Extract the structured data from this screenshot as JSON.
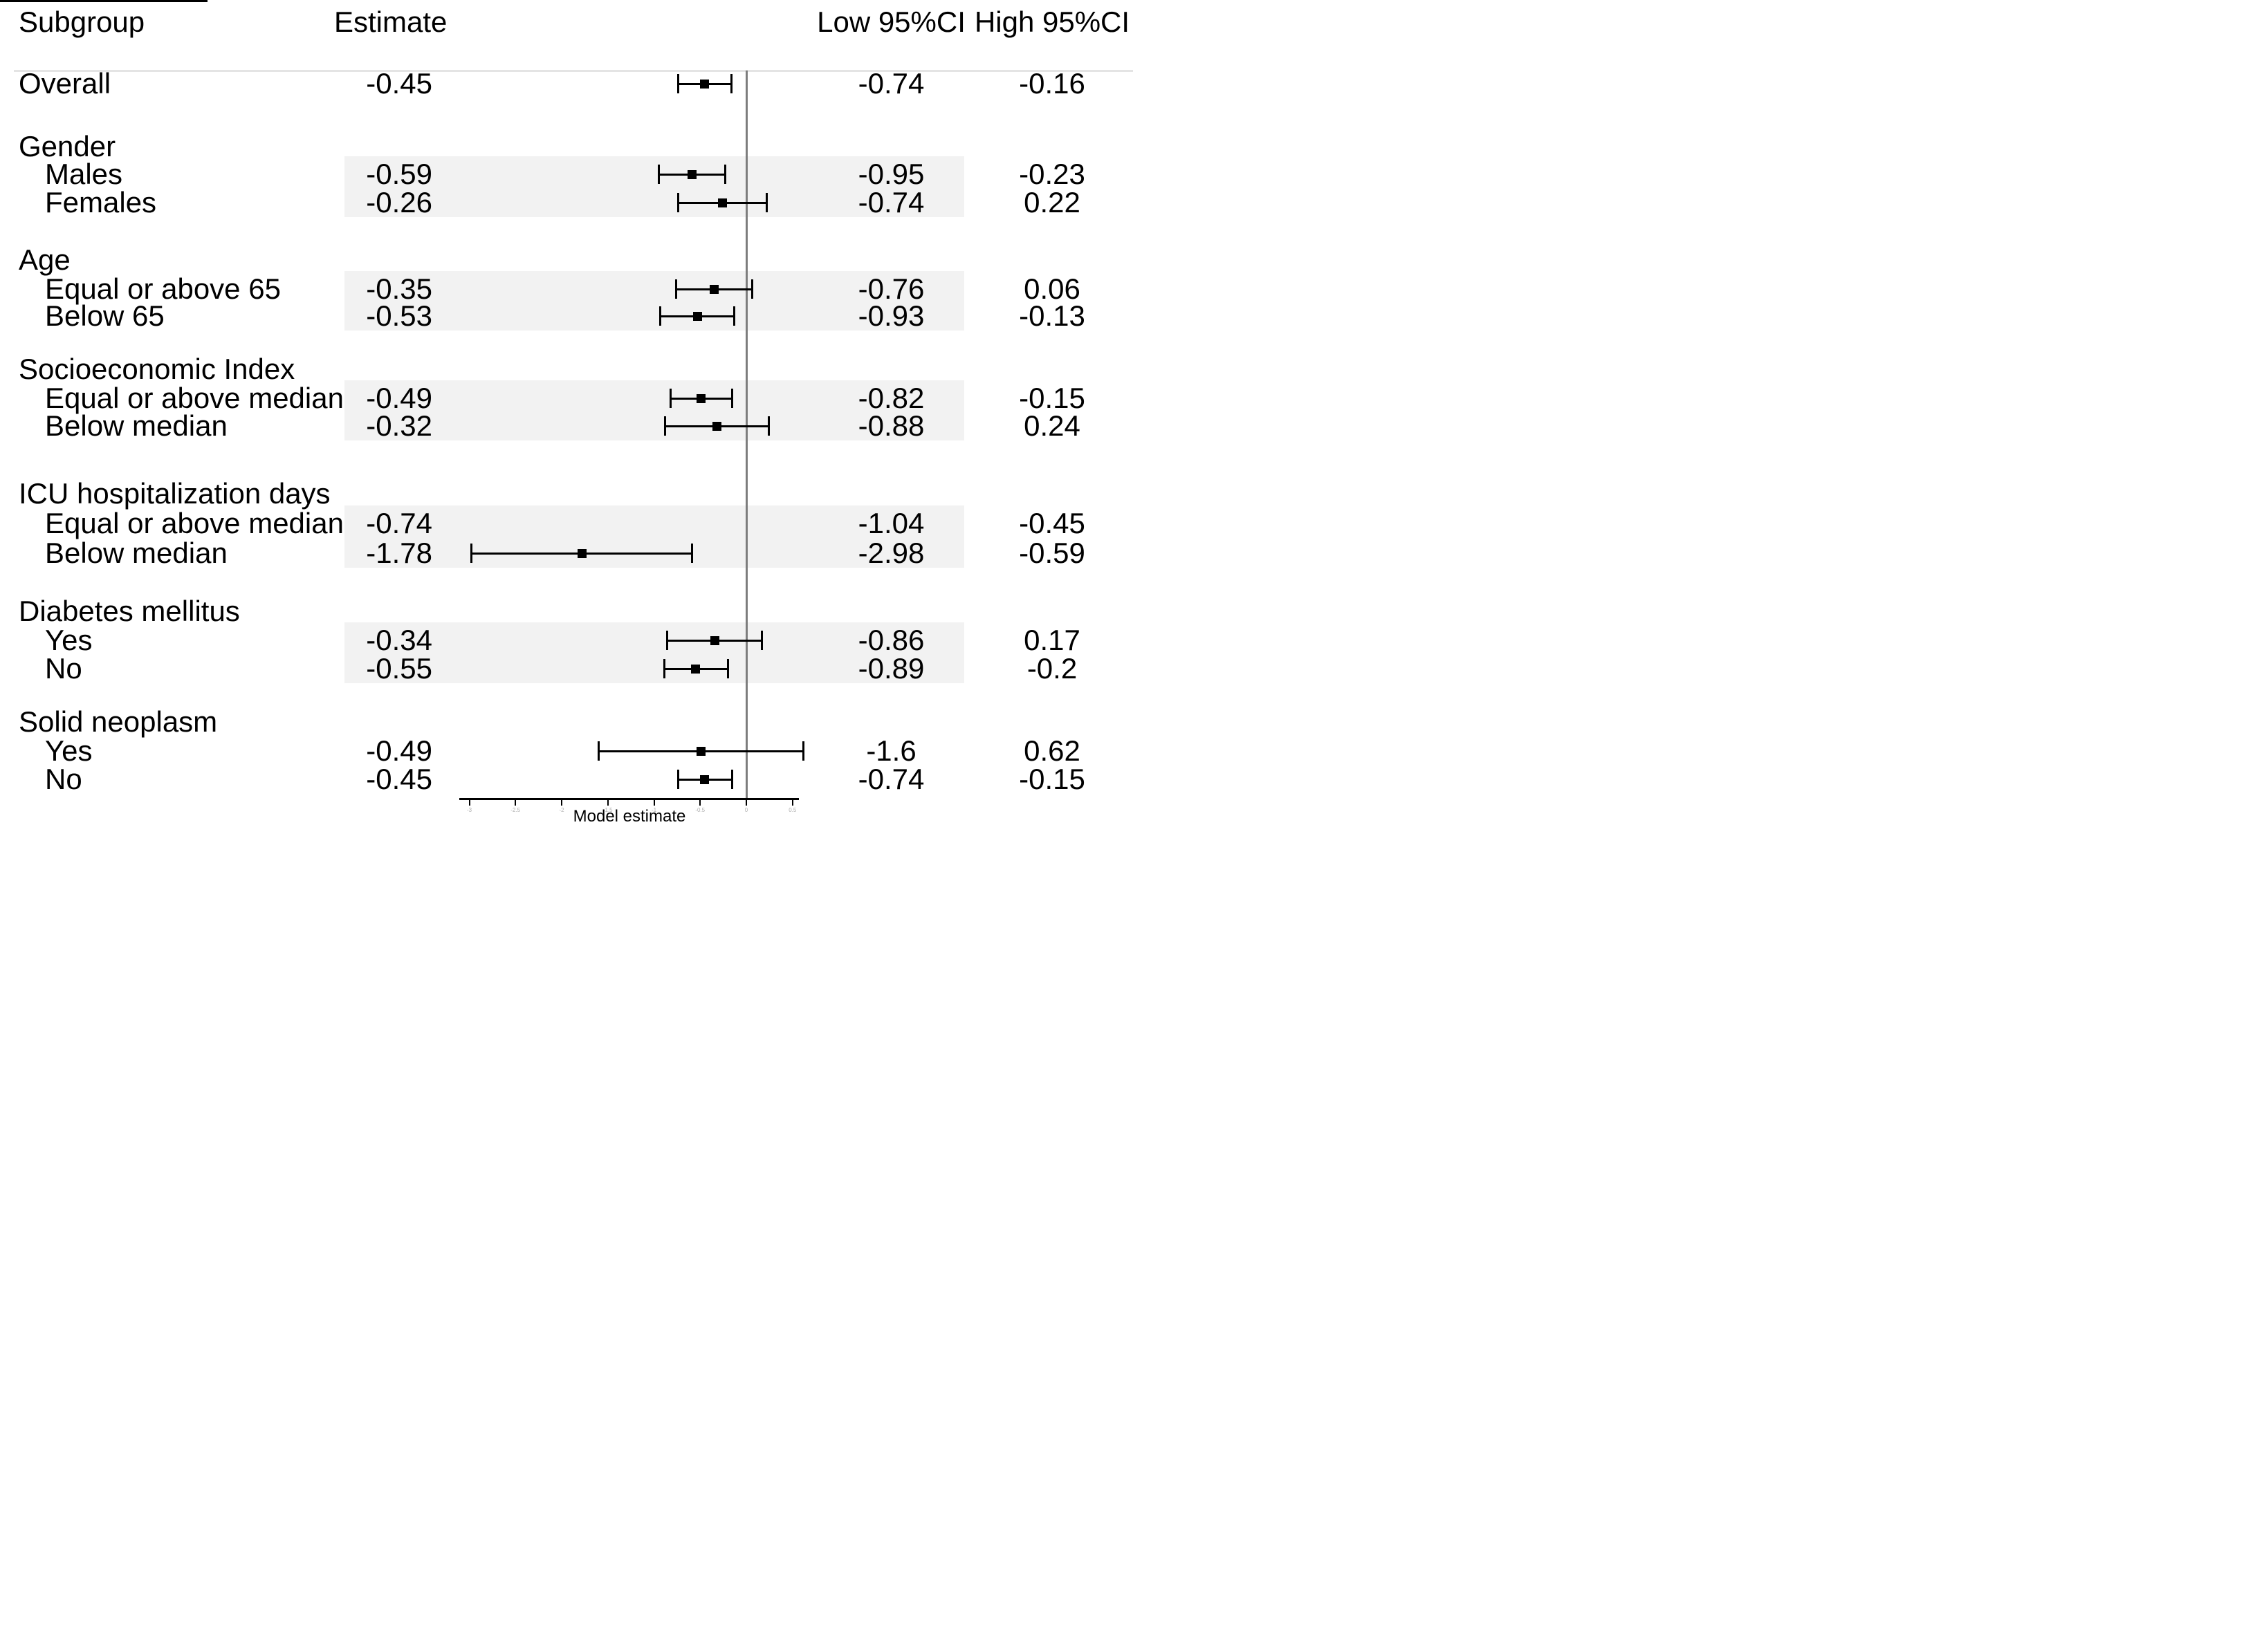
{
  "header": {
    "subgroup": "Subgroup",
    "estimate": "Estimate",
    "low": "Low 95%CI",
    "high": "High 95%CI"
  },
  "chart_data": {
    "type": "forest",
    "xlabel": "Model estimate",
    "x_ticks": [
      -3,
      -2.5,
      -2,
      -1.5,
      -1,
      -0.5,
      0,
      0.5
    ],
    "x_range": [
      -3.1,
      0.58
    ],
    "reference_line": 0,
    "columns": [
      "Subgroup",
      "Estimate",
      "Low 95%CI",
      "High 95%CI"
    ],
    "rows": [
      {
        "type": "row",
        "label": "Overall",
        "estimate": "-0.45",
        "low": "-0.74",
        "high": "-0.16",
        "indent": false,
        "bar": true
      },
      {
        "type": "group",
        "label": "Gender",
        "shaded": true
      },
      {
        "type": "row",
        "label": "Males",
        "estimate": "-0.59",
        "low": "-0.95",
        "high": "-0.23",
        "indent": true,
        "bar": true
      },
      {
        "type": "row",
        "label": "Females",
        "estimate": "-0.26",
        "low": "-0.74",
        "high": "0.22",
        "indent": true,
        "bar": true
      },
      {
        "type": "group",
        "label": "Age",
        "shaded": true
      },
      {
        "type": "row",
        "label": "Equal or above 65",
        "estimate": "-0.35",
        "low": "-0.76",
        "high": "0.06",
        "indent": true,
        "bar": true
      },
      {
        "type": "row",
        "label": "Below 65",
        "estimate": "-0.53",
        "low": "-0.93",
        "high": "-0.13",
        "indent": true,
        "bar": true
      },
      {
        "type": "group",
        "label": "Socioeconomic Index",
        "shaded": true
      },
      {
        "type": "row",
        "label": "Equal or above median",
        "estimate": "-0.49",
        "low": "-0.82",
        "high": "-0.15",
        "indent": true,
        "bar": true
      },
      {
        "type": "row",
        "label": "Below median",
        "estimate": "-0.32",
        "low": "-0.88",
        "high": "0.24",
        "indent": true,
        "bar": true
      },
      {
        "type": "group",
        "label": "ICU hospitalization days",
        "shaded": true
      },
      {
        "type": "row",
        "label": "Equal or above median",
        "estimate": "-0.74",
        "low": "-1.04",
        "high": "-0.45",
        "indent": true,
        "bar": false
      },
      {
        "type": "row",
        "label": "Below median",
        "estimate": "-1.78",
        "low": "-2.98",
        "high": "-0.59",
        "indent": true,
        "bar": true
      },
      {
        "type": "group",
        "label": "Diabetes mellitus",
        "shaded": true
      },
      {
        "type": "row",
        "label": "Yes",
        "estimate": "-0.34",
        "low": "-0.86",
        "high": "0.17",
        "indent": true,
        "bar": true
      },
      {
        "type": "row",
        "label": "No",
        "estimate": "-0.55",
        "low": "-0.89",
        "high": "-0.2",
        "indent": true,
        "bar": true
      },
      {
        "type": "group",
        "label": "Solid neoplasm",
        "shaded": false
      },
      {
        "type": "row",
        "label": "Yes",
        "estimate": "-0.49",
        "low": "-1.6",
        "high": "0.62",
        "indent": true,
        "bar": true
      },
      {
        "type": "row",
        "label": "No",
        "estimate": "-0.45",
        "low": "-0.74",
        "high": "-0.15",
        "indent": true,
        "bar": true
      }
    ]
  },
  "colors": {
    "band": "#f2f2f2",
    "reference_line": "#7d7d7d",
    "marker": "#000000",
    "separator": "#e4e4e4"
  }
}
